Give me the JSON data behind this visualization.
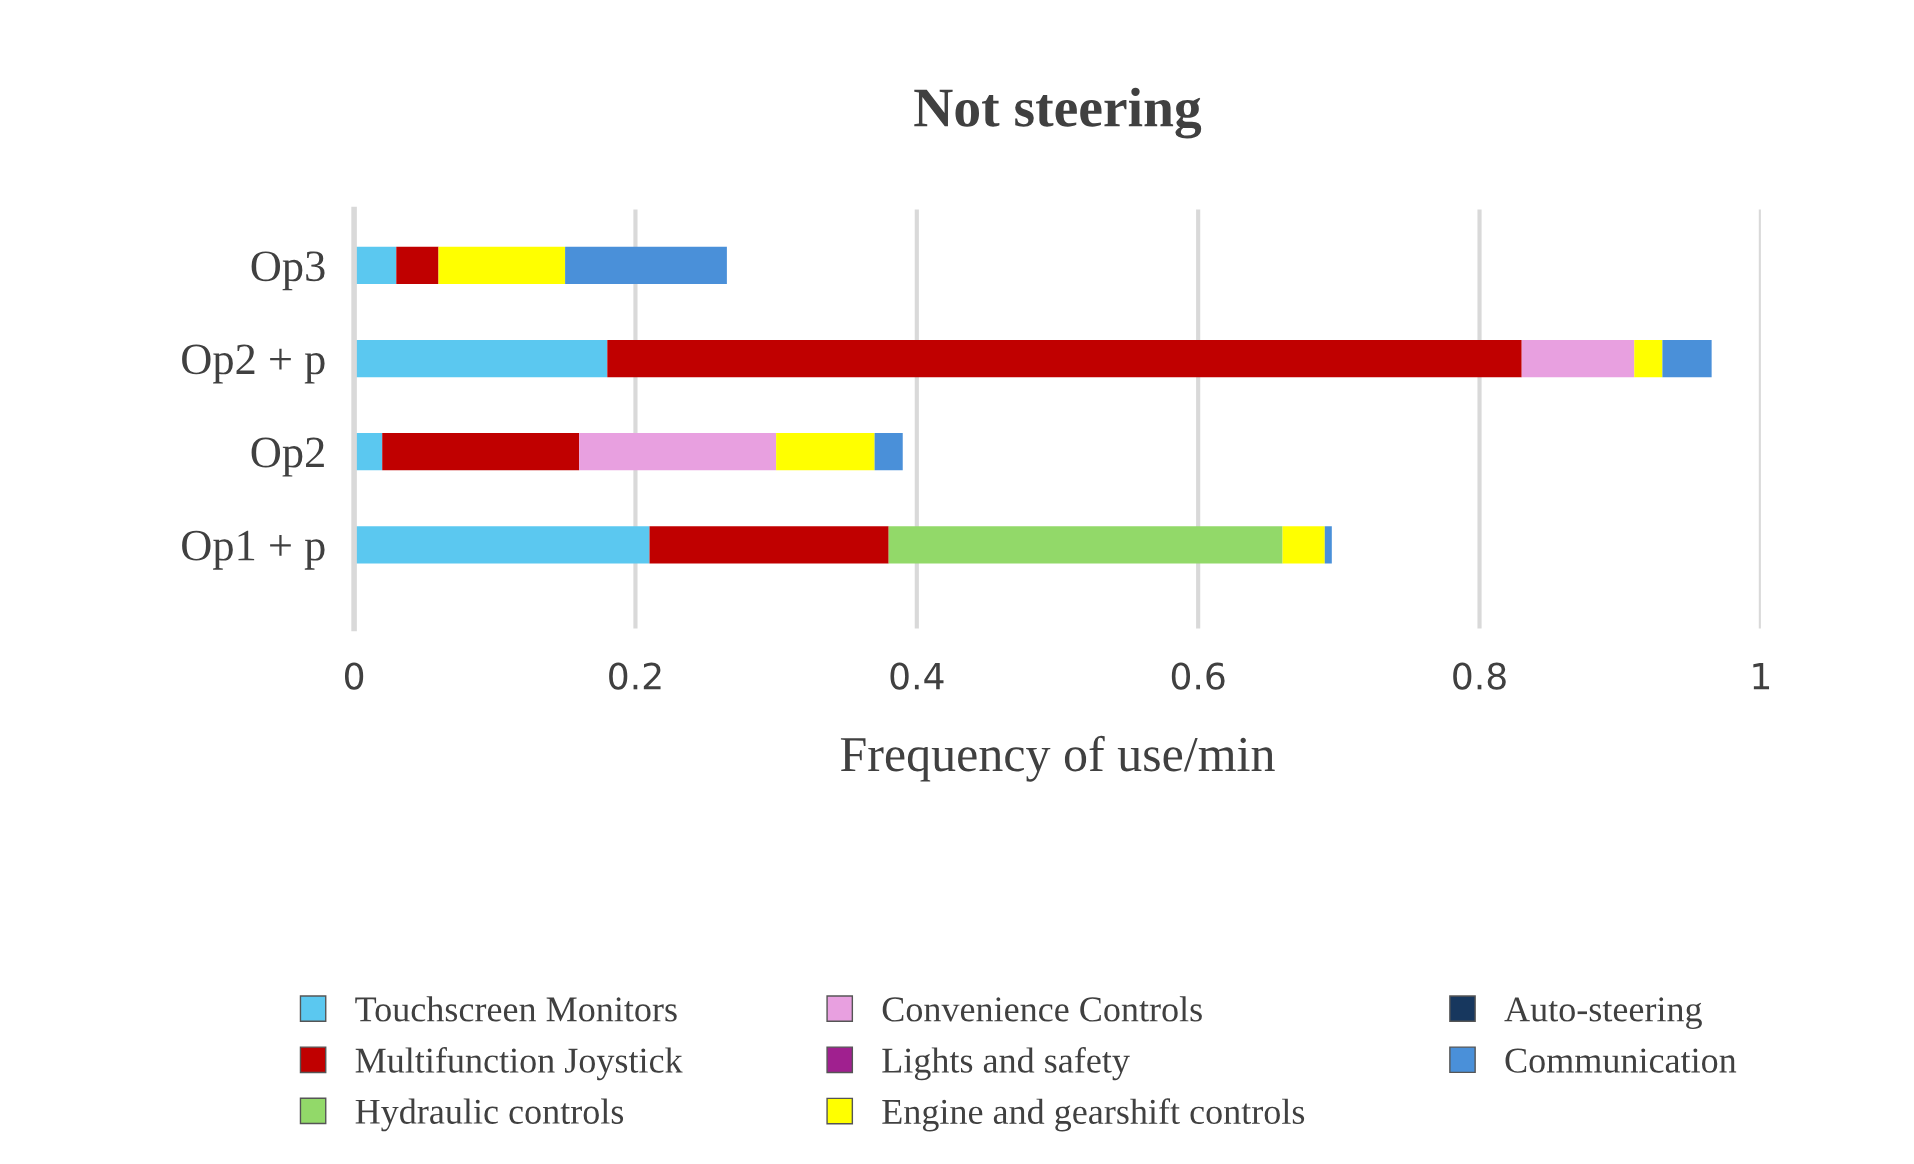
{
  "chart_data": {
    "type": "bar",
    "orientation": "horizontal",
    "stacked": true,
    "title": "Not steering",
    "xlabel": "Frequency of use/min",
    "categories": [
      "Op3",
      "Op2 + p",
      "Op2",
      "Op1 + p"
    ],
    "series": [
      {
        "name": "Touchscreen Monitors",
        "color": "#5bc8f0",
        "values": [
          0.03,
          0.18,
          0.02,
          0.21
        ]
      },
      {
        "name": "Multifunction Joystick",
        "color": "#c00000",
        "values": [
          0.03,
          0.65,
          0.14,
          0.17
        ]
      },
      {
        "name": "Hydraulic controls",
        "color": "#92d969",
        "values": [
          0,
          0,
          0,
          0.28
        ]
      },
      {
        "name": "Convenience Controls",
        "color": "#e8a0e0",
        "values": [
          0,
          0.08,
          0.14,
          0
        ]
      },
      {
        "name": "Lights and safety",
        "color": "#a0208f",
        "values": [
          0,
          0,
          0,
          0
        ]
      },
      {
        "name": "Engine and gearshift controls",
        "color": "#ffff00",
        "values": [
          0.09,
          0.02,
          0.07,
          0.03
        ]
      },
      {
        "name": "Auto-steering",
        "color": "#17375e",
        "values": [
          0,
          0,
          0,
          0
        ]
      },
      {
        "name": "Communication",
        "color": "#4a90d9",
        "values": [
          0.115,
          0.035,
          0.02,
          0.005
        ]
      }
    ],
    "xlim": [
      0,
      1
    ],
    "xticks": [
      0,
      0.2,
      0.4,
      0.6,
      0.8,
      1
    ],
    "grid": "x",
    "legend": "bottom"
  }
}
